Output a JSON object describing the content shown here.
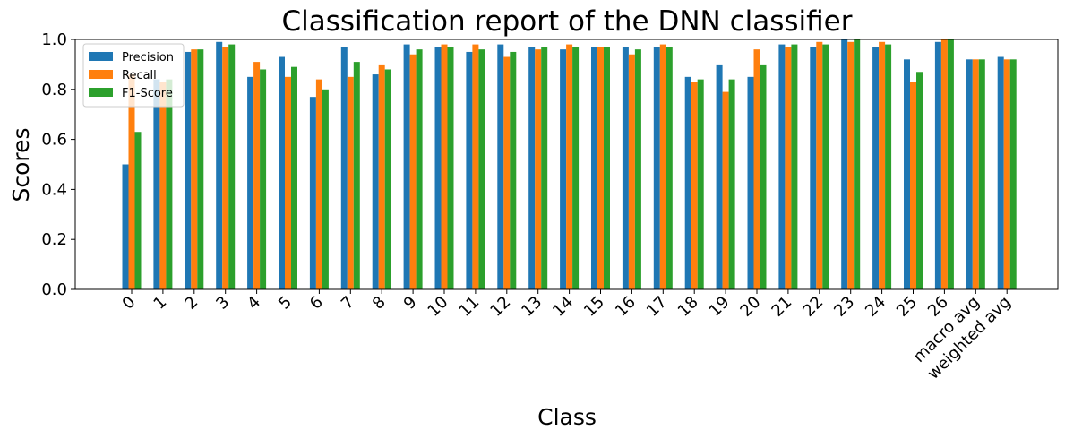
{
  "chart_data": {
    "type": "bar",
    "title": "Classification report of the DNN classifier",
    "xlabel": "Class",
    "ylabel": "Scores",
    "ylim": [
      0,
      1.0
    ],
    "yticks": [
      "0.0",
      "0.2",
      "0.4",
      "0.6",
      "0.8",
      "1.0"
    ],
    "grid": false,
    "legend_position": "top-left",
    "categories": [
      "0",
      "1",
      "2",
      "3",
      "4",
      "5",
      "6",
      "7",
      "8",
      "9",
      "10",
      "11",
      "12",
      "13",
      "14",
      "15",
      "16",
      "17",
      "18",
      "19",
      "20",
      "21",
      "22",
      "23",
      "24",
      "25",
      "26",
      "macro avg",
      "weighted avg"
    ],
    "series": [
      {
        "name": "Precision",
        "color": "#1f77b4",
        "values": [
          0.5,
          0.84,
          0.95,
          0.99,
          0.85,
          0.93,
          0.77,
          0.97,
          0.86,
          0.98,
          0.97,
          0.95,
          0.98,
          0.97,
          0.96,
          0.97,
          0.97,
          0.97,
          0.85,
          0.9,
          0.85,
          0.98,
          0.97,
          1.0,
          0.97,
          0.92,
          0.99,
          0.92,
          0.93
        ]
      },
      {
        "name": "Recall",
        "color": "#ff7f0e",
        "values": [
          0.86,
          0.83,
          0.96,
          0.97,
          0.91,
          0.85,
          0.84,
          0.85,
          0.9,
          0.94,
          0.98,
          0.98,
          0.93,
          0.96,
          0.98,
          0.97,
          0.94,
          0.98,
          0.83,
          0.79,
          0.96,
          0.97,
          0.99,
          0.99,
          0.99,
          0.83,
          1.0,
          0.92,
          0.92
        ]
      },
      {
        "name": "F1-Score",
        "color": "#2ca02c",
        "values": [
          0.63,
          0.84,
          0.96,
          0.98,
          0.88,
          0.89,
          0.8,
          0.91,
          0.88,
          0.96,
          0.97,
          0.96,
          0.95,
          0.97,
          0.97,
          0.97,
          0.96,
          0.97,
          0.84,
          0.84,
          0.9,
          0.98,
          0.98,
          1.0,
          0.98,
          0.87,
          1.0,
          0.92,
          0.92
        ]
      }
    ]
  }
}
